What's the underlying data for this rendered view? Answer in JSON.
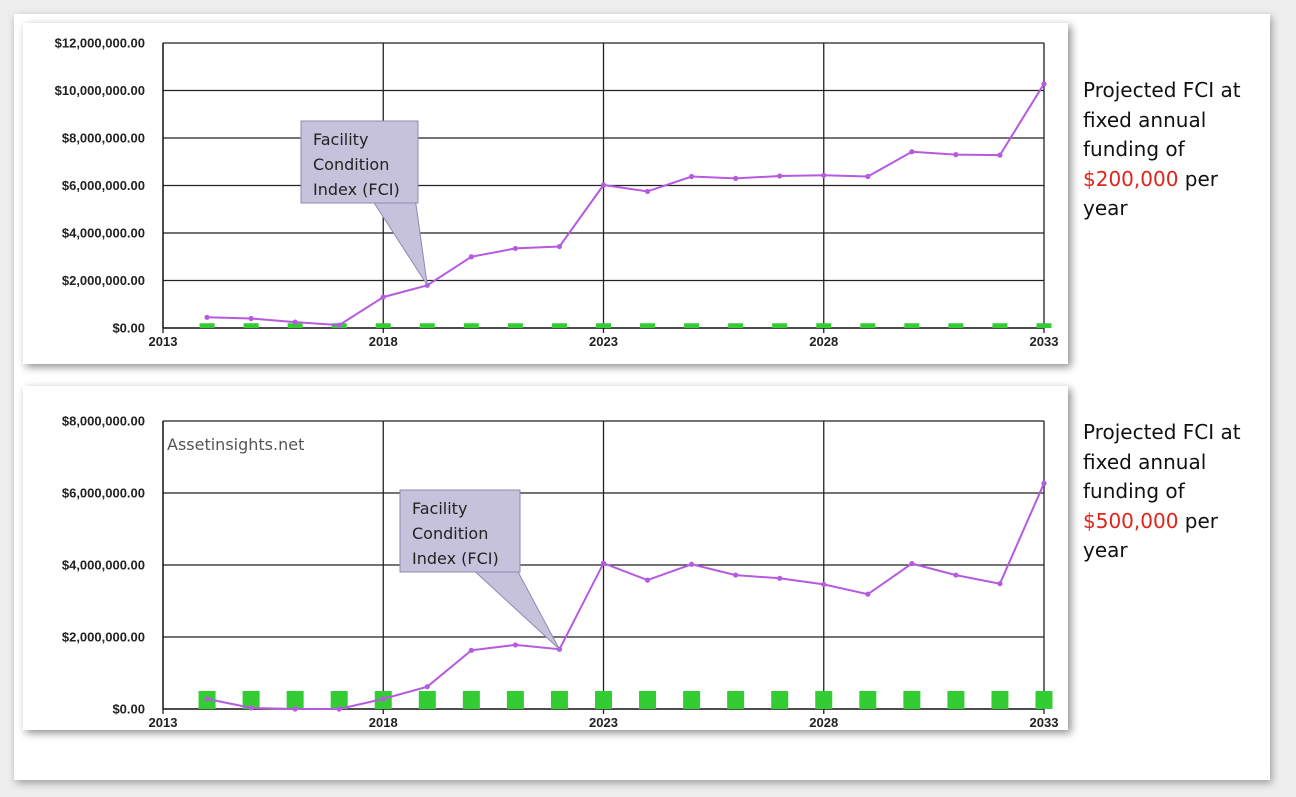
{
  "colors": {
    "line": "#b65ae0",
    "bar": "#33cc33",
    "callout_fill": "#c6c2dc",
    "callout_stroke": "#8f89b3",
    "grid": "#222222",
    "amount_text": "#e2231a"
  },
  "charts": [
    {
      "id": "fixed-200k",
      "callout": [
        "Facility",
        "Condition",
        "Index (FCI)"
      ],
      "watermark": "",
      "note": {
        "before": "Projected FCI at fixed annual funding of",
        "amount": "$200,000",
        "after": "per year"
      }
    },
    {
      "id": "fixed-500k",
      "callout": [
        "Facility",
        "Condition",
        "Index (FCI)"
      ],
      "watermark": "Assetinsights.net",
      "note": {
        "before": "Projected FCI at fixed annual funding of",
        "amount": "$500,000",
        "after": "per year"
      }
    }
  ],
  "chart_data": [
    {
      "type": "line",
      "title": "",
      "xlabel": "",
      "ylabel": "",
      "xlim": [
        2013,
        2033
      ],
      "ylim": [
        0,
        12000000
      ],
      "x_ticks": [
        "2013",
        "2018",
        "2023",
        "2028",
        "2033"
      ],
      "y_ticks": [
        "$0.00",
        "$2,000,000.00",
        "$4,000,000.00",
        "$6,000,000.00",
        "$8,000,000.00",
        "$10,000,000.00",
        "$12,000,000.00"
      ],
      "grid": true,
      "legend": "none",
      "series": [
        {
          "type": "line",
          "x": [
            2014,
            2015,
            2016,
            2017,
            2018,
            2019,
            2020,
            2021,
            2022,
            2023,
            2024,
            2025,
            2026,
            2027,
            2028,
            2029,
            2030,
            2031,
            2032,
            2033
          ],
          "values": [
            450000,
            400000,
            250000,
            120000,
            1300000,
            1800000,
            3000000,
            3350000,
            3430000,
            6020000,
            5750000,
            6380000,
            6300000,
            6400000,
            6430000,
            6380000,
            7420000,
            7300000,
            7280000,
            10280000
          ]
        },
        {
          "type": "bar",
          "x": [
            2014,
            2015,
            2016,
            2017,
            2018,
            2019,
            2020,
            2021,
            2022,
            2023,
            2024,
            2025,
            2026,
            2027,
            2028,
            2029,
            2030,
            2031,
            2032,
            2033
          ],
          "values": [
            200000,
            200000,
            200000,
            200000,
            200000,
            200000,
            200000,
            200000,
            200000,
            200000,
            200000,
            200000,
            200000,
            200000,
            200000,
            200000,
            200000,
            200000,
            200000,
            200000
          ]
        }
      ],
      "annotations": [
        {
          "text": "Facility Condition Index (FCI)",
          "points_to": [
            2019,
            1800000
          ]
        }
      ]
    },
    {
      "type": "line",
      "title": "",
      "xlabel": "",
      "ylabel": "",
      "xlim": [
        2013,
        2033
      ],
      "ylim": [
        0,
        8000000
      ],
      "x_ticks": [
        "2013",
        "2018",
        "2023",
        "2028",
        "2033"
      ],
      "y_ticks": [
        "$0.00",
        "$2,000,000.00",
        "$4,000,000.00",
        "$6,000,000.00",
        "$8,000,000.00"
      ],
      "grid": true,
      "legend": "none",
      "series": [
        {
          "type": "line",
          "x": [
            2014,
            2015,
            2016,
            2017,
            2018,
            2019,
            2020,
            2021,
            2022,
            2023,
            2024,
            2025,
            2026,
            2027,
            2028,
            2029,
            2030,
            2031,
            2032,
            2033
          ],
          "values": [
            280000,
            30000,
            0,
            0,
            280000,
            620000,
            1630000,
            1780000,
            1660000,
            4050000,
            3580000,
            4020000,
            3720000,
            3630000,
            3460000,
            3190000,
            4040000,
            3720000,
            3480000,
            6270000
          ]
        },
        {
          "type": "bar",
          "x": [
            2014,
            2015,
            2016,
            2017,
            2018,
            2019,
            2020,
            2021,
            2022,
            2023,
            2024,
            2025,
            2026,
            2027,
            2028,
            2029,
            2030,
            2031,
            2032,
            2033
          ],
          "values": [
            500000,
            500000,
            500000,
            500000,
            500000,
            500000,
            500000,
            500000,
            500000,
            500000,
            500000,
            500000,
            500000,
            500000,
            500000,
            500000,
            500000,
            500000,
            500000,
            500000
          ]
        }
      ],
      "annotations": [
        {
          "text": "Facility Condition Index (FCI)",
          "points_to": [
            2022,
            1660000
          ]
        }
      ]
    }
  ]
}
